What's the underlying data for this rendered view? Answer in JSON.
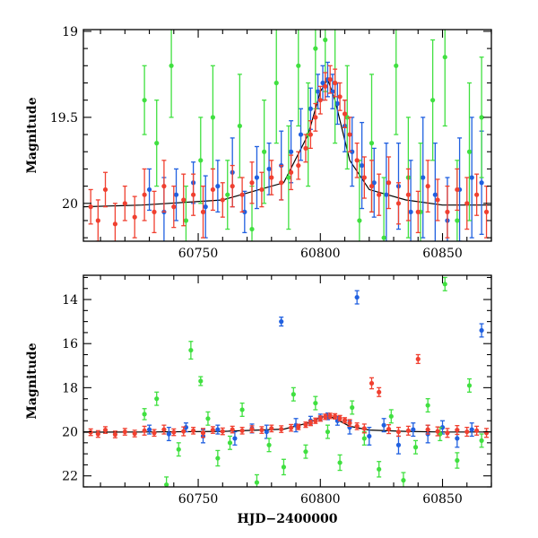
{
  "chart_data": [
    {
      "type": "scatter",
      "title": "",
      "xlabel": "",
      "ylabel": "Magnitude",
      "xlim": [
        60703,
        60870
      ],
      "ylim": [
        20.22,
        18.99
      ],
      "y_inverted": true,
      "xticks": [
        60750,
        60800,
        60850
      ],
      "xtick_labels": [
        "60750",
        "60800",
        "60850"
      ],
      "yticks": [
        19,
        19.5,
        20
      ],
      "ytick_labels": [
        "19",
        "19.5",
        "20"
      ],
      "grid": false,
      "legend": "none",
      "model": {
        "color": "#000000",
        "x": [
          60703,
          60727,
          60760,
          60785,
          60795,
          60800,
          60803,
          60806,
          60812,
          60820,
          60835,
          60850,
          60870
        ],
        "y": [
          20.02,
          20.01,
          19.98,
          19.88,
          19.6,
          19.35,
          19.28,
          19.4,
          19.75,
          19.92,
          19.98,
          20.01,
          20.01
        ]
      },
      "series": [
        {
          "color": "#2060e0",
          "x": [
            60730,
            60736,
            60741,
            60748,
            60753,
            60758,
            60764,
            60769,
            60774,
            60779,
            60784,
            60788,
            60792,
            60796,
            60799,
            60801,
            60803,
            60805,
            60807,
            60810,
            60813,
            60817,
            60822,
            60827,
            60832,
            60837,
            60842,
            60847,
            60852,
            60857,
            60862,
            60866
          ],
          "y": [
            19.92,
            20.05,
            19.95,
            19.88,
            20.02,
            19.9,
            19.82,
            20.05,
            19.85,
            19.8,
            19.78,
            19.7,
            19.6,
            19.45,
            19.35,
            19.3,
            19.28,
            19.35,
            19.42,
            19.55,
            19.7,
            19.78,
            19.88,
            19.95,
            19.9,
            20.05,
            19.85,
            19.95,
            20.1,
            19.92,
            19.85,
            19.88
          ],
          "err": [
            0.12,
            0.2,
            0.15,
            0.12,
            0.18,
            0.15,
            0.2,
            0.12,
            0.18,
            0.15,
            0.2,
            0.18,
            0.15,
            0.12,
            0.1,
            0.1,
            0.1,
            0.1,
            0.12,
            0.15,
            0.2,
            0.25,
            0.2,
            0.3,
            0.25,
            0.3,
            0.35,
            0.3,
            0.25,
            0.3,
            0.35,
            0.3
          ]
        },
        {
          "color": "#40e040",
          "x": [
            60728,
            60733,
            60739,
            60745,
            60751,
            60756,
            60762,
            60767,
            60772,
            60777,
            60782,
            60787,
            60791,
            60795,
            60798,
            60802,
            60806,
            60811,
            60816,
            60821,
            60826,
            60831,
            60836,
            60841,
            60846,
            60851,
            60856,
            60861,
            60866
          ],
          "y": [
            19.4,
            19.65,
            19.2,
            20.1,
            19.75,
            19.5,
            19.95,
            19.55,
            20.15,
            19.7,
            19.3,
            19.85,
            19.2,
            19.6,
            19.1,
            19.05,
            19.3,
            19.5,
            20.1,
            19.65,
            20.2,
            19.2,
            19.85,
            20.05,
            19.4,
            19.15,
            20.1,
            19.7,
            19.5
          ],
          "err": [
            0.2,
            0.25,
            0.3,
            0.2,
            0.25,
            0.3,
            0.2,
            0.3,
            0.25,
            0.3,
            0.35,
            0.3,
            0.35,
            0.3,
            0.35,
            0.3,
            0.35,
            0.3,
            0.35,
            0.4,
            0.35,
            0.4,
            0.35,
            0.4,
            0.35,
            0.4,
            0.35,
            0.4,
            0.35
          ]
        },
        {
          "color": "#f04030",
          "x": [
            60706,
            60709,
            60712,
            60716,
            60720,
            60724,
            60728,
            60732,
            60736,
            60740,
            60744,
            60748,
            60752,
            60756,
            60760,
            60764,
            60768,
            60772,
            60776,
            60780,
            60784,
            60788,
            60791,
            60794,
            60796,
            60798,
            60800,
            60802,
            60804,
            60806,
            60808,
            60810,
            60812,
            60815,
            60818,
            60821,
            60824,
            60828,
            60832,
            60836,
            60840,
            60844,
            60848,
            60852,
            60856,
            60860,
            60864,
            60868
          ],
          "y": [
            20.02,
            20.1,
            19.92,
            20.12,
            20.0,
            20.08,
            19.95,
            20.05,
            19.9,
            20.02,
            19.98,
            19.95,
            20.05,
            19.92,
            19.98,
            19.9,
            19.95,
            19.88,
            19.92,
            19.85,
            19.88,
            19.82,
            19.78,
            19.68,
            19.6,
            19.5,
            19.4,
            19.32,
            19.28,
            19.3,
            19.38,
            19.48,
            19.6,
            19.75,
            19.85,
            19.9,
            19.95,
            19.88,
            20.0,
            19.95,
            20.05,
            19.9,
            19.98,
            20.05,
            19.92,
            20.0,
            19.95,
            20.05
          ],
          "err": [
            0.1,
            0.12,
            0.1,
            0.12,
            0.1,
            0.12,
            0.15,
            0.12,
            0.15,
            0.12,
            0.15,
            0.12,
            0.15,
            0.12,
            0.1,
            0.12,
            0.1,
            0.12,
            0.1,
            0.1,
            0.1,
            0.1,
            0.08,
            0.08,
            0.08,
            0.08,
            0.08,
            0.08,
            0.08,
            0.08,
            0.08,
            0.08,
            0.1,
            0.1,
            0.12,
            0.15,
            0.12,
            0.15,
            0.12,
            0.15,
            0.12,
            0.15,
            0.12,
            0.15,
            0.12,
            0.15,
            0.12,
            0.15
          ]
        }
      ]
    },
    {
      "type": "scatter",
      "title": "",
      "xlabel": "HJD−2400000",
      "ylabel": "Magnitude",
      "xlim": [
        60703,
        60870
      ],
      "ylim": [
        22.5,
        12.9
      ],
      "y_inverted": true,
      "xticks": [
        60750,
        60800,
        60850
      ],
      "xtick_labels": [
        "60750",
        "60800",
        "60850"
      ],
      "yticks": [
        14,
        16,
        18,
        20,
        22
      ],
      "ytick_labels": [
        "14",
        "16",
        "18",
        "20",
        "22"
      ],
      "grid": false,
      "legend": "none",
      "model": {
        "color": "#000000",
        "x": [
          60703,
          60727,
          60760,
          60785,
          60795,
          60800,
          60803,
          60806,
          60812,
          60820,
          60835,
          60850,
          60870
        ],
        "y": [
          20.02,
          20.01,
          19.98,
          19.88,
          19.6,
          19.35,
          19.28,
          19.4,
          19.75,
          19.92,
          19.98,
          20.01,
          20.01
        ]
      },
      "series": [
        {
          "color": "#2060e0",
          "x": [
            60730,
            60738,
            60745,
            60752,
            60758,
            60765,
            60772,
            60778,
            60784,
            60790,
            60796,
            60800,
            60803,
            60807,
            60812,
            60815,
            60820,
            60826,
            60832,
            60838,
            60844,
            60850,
            60856,
            60862,
            60866
          ],
          "y": [
            19.9,
            20.1,
            19.8,
            20.2,
            19.9,
            20.3,
            19.85,
            20.0,
            15.0,
            19.7,
            19.5,
            19.35,
            19.3,
            19.5,
            19.8,
            13.9,
            20.2,
            19.7,
            20.6,
            19.9,
            20.1,
            19.8,
            20.3,
            19.9,
            15.4
          ],
          "err": [
            0.2,
            0.3,
            0.2,
            0.3,
            0.2,
            0.3,
            0.2,
            0.3,
            0.2,
            0.3,
            0.2,
            0.15,
            0.15,
            0.2,
            0.3,
            0.3,
            0.4,
            0.3,
            0.4,
            0.3,
            0.4,
            0.3,
            0.4,
            0.3,
            0.3
          ]
        },
        {
          "color": "#40e040",
          "x": [
            60728,
            60733,
            60737,
            60742,
            60747,
            60751,
            60754,
            60758,
            60763,
            60768,
            60774,
            60779,
            60785,
            60789,
            60794,
            60798,
            60803,
            60808,
            60813,
            60818,
            60824,
            60829,
            60834,
            60839,
            60844,
            60849,
            60851,
            60856,
            60861,
            60866
          ],
          "y": [
            19.2,
            18.5,
            22.4,
            20.8,
            16.3,
            17.7,
            19.4,
            21.2,
            20.5,
            19.0,
            22.3,
            20.6,
            21.6,
            18.3,
            20.9,
            18.7,
            20.0,
            21.4,
            18.9,
            20.3,
            21.7,
            19.3,
            22.2,
            20.7,
            18.8,
            20.1,
            13.3,
            21.3,
            17.9,
            20.4
          ],
          "err": [
            0.25,
            0.3,
            0.35,
            0.3,
            0.4,
            0.2,
            0.3,
            0.35,
            0.3,
            0.3,
            0.35,
            0.3,
            0.35,
            0.3,
            0.3,
            0.3,
            0.3,
            0.35,
            0.3,
            0.3,
            0.35,
            0.3,
            0.35,
            0.3,
            0.3,
            0.3,
            0.3,
            0.35,
            0.3,
            0.3
          ]
        },
        {
          "color": "#f04030",
          "x": [
            60706,
            60709,
            60712,
            60716,
            60720,
            60724,
            60728,
            60732,
            60736,
            60740,
            60744,
            60748,
            60752,
            60756,
            60760,
            60764,
            60768,
            60772,
            60776,
            60780,
            60784,
            60788,
            60791,
            60794,
            60796,
            60798,
            60800,
            60802,
            60804,
            60806,
            60808,
            60810,
            60812,
            60815,
            60818,
            60821,
            60824,
            60828,
            60832,
            60836,
            60840,
            60844,
            60848,
            60852,
            60856,
            60860,
            60864,
            60868
          ],
          "y": [
            20.02,
            20.1,
            19.92,
            20.12,
            20.0,
            20.08,
            19.95,
            20.05,
            19.9,
            20.02,
            19.98,
            19.95,
            20.05,
            19.92,
            19.98,
            19.9,
            19.95,
            19.88,
            19.92,
            19.85,
            19.88,
            19.82,
            19.78,
            19.68,
            19.6,
            19.5,
            19.4,
            19.32,
            19.28,
            19.3,
            19.38,
            19.48,
            19.6,
            19.75,
            19.85,
            17.8,
            18.2,
            19.88,
            20.0,
            19.95,
            16.7,
            19.9,
            19.98,
            20.05,
            19.92,
            20.0,
            19.95,
            20.05
          ],
          "err": [
            0.15,
            0.15,
            0.15,
            0.15,
            0.15,
            0.15,
            0.2,
            0.15,
            0.2,
            0.15,
            0.2,
            0.15,
            0.2,
            0.15,
            0.15,
            0.15,
            0.15,
            0.15,
            0.15,
            0.15,
            0.15,
            0.15,
            0.12,
            0.12,
            0.12,
            0.12,
            0.12,
            0.12,
            0.12,
            0.12,
            0.12,
            0.12,
            0.15,
            0.15,
            0.2,
            0.25,
            0.2,
            0.2,
            0.2,
            0.2,
            0.2,
            0.2,
            0.2,
            0.2,
            0.2,
            0.2,
            0.2,
            0.2
          ]
        }
      ]
    }
  ]
}
